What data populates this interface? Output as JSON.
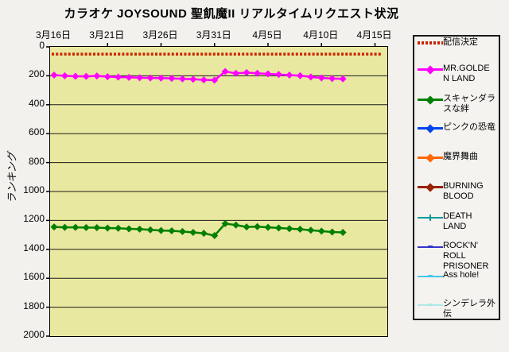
{
  "chart_data": {
    "type": "line",
    "title": "カラオケ JOYSOUND 聖飢魔II リアルタイムリクエスト状況",
    "ylabel": "ランキング",
    "y_axis": {
      "min": 0,
      "max": 2000,
      "step": 200,
      "inverted": true
    },
    "x_tick_labels": [
      "3月16日",
      "3月21日",
      "3月26日",
      "3月31日",
      "4月5日",
      "4月10日",
      "4月15日"
    ],
    "categories": [
      "3月16日",
      "3月17日",
      "3月18日",
      "3月19日",
      "3月20日",
      "3月21日",
      "3月22日",
      "3月23日",
      "3月24日",
      "3月25日",
      "3月26日",
      "3月27日",
      "3月28日",
      "3月29日",
      "3月30日",
      "3月31日",
      "4月1日",
      "4月2日",
      "4月3日",
      "4月4日",
      "4月5日",
      "4月6日",
      "4月7日",
      "4月8日",
      "4月9日",
      "4月10日",
      "4月11日",
      "4月12日"
    ],
    "plot_bg": "#e9e8a0",
    "grid_color": "#1a1a1a",
    "legend_position": "right",
    "series": [
      {
        "name": "配信決定",
        "color": "#cc2200",
        "legend_marker": "dots",
        "thick": true,
        "constant_value": 50,
        "values": []
      },
      {
        "name": "MR.GOLDEN LAND",
        "color": "#ff00ff",
        "legend_marker": "diamond",
        "thick": true,
        "values": [
          195,
          200,
          203,
          204,
          201,
          206,
          209,
          211,
          213,
          215,
          216,
          218,
          221,
          224,
          228,
          230,
          170,
          183,
          178,
          183,
          187,
          191,
          195,
          199,
          208,
          214,
          219,
          221
        ]
      },
      {
        "name": "スキャンダラスな絆",
        "color": "#008000",
        "legend_marker": "diamond",
        "thick": true,
        "values": [
          1245,
          1248,
          1248,
          1249,
          1250,
          1253,
          1254,
          1258,
          1260,
          1265,
          1270,
          1272,
          1277,
          1283,
          1289,
          1305,
          1222,
          1232,
          1245,
          1243,
          1248,
          1252,
          1257,
          1261,
          1268,
          1274,
          1280,
          1283
        ]
      },
      {
        "name": "ピンクの恐竜",
        "color": "#0045ee",
        "legend_marker": "diamond",
        "thick": true,
        "values": []
      },
      {
        "name": "魔界舞曲",
        "color": "#ff6600",
        "legend_marker": "diamond",
        "thick": true,
        "values": []
      },
      {
        "name": "BURNING BLOOD",
        "color": "#992200",
        "legend_marker": "diamond",
        "thick": true,
        "values": []
      },
      {
        "name": "DEATH LAND",
        "color": "#009999",
        "legend_marker": "tick",
        "thick": false,
        "values": []
      },
      {
        "name": "ROCK'N' ROLL PRISONER",
        "color": "#3533cc",
        "legend_marker": "dash",
        "thick": false,
        "values": []
      },
      {
        "name": "Ass hole!",
        "color": "#44c8ee",
        "legend_marker": "dash",
        "thick": false,
        "values": []
      },
      {
        "name": "シンデレラ外伝",
        "color": "#aee8e8",
        "legend_marker": "dash",
        "thick": false,
        "values": []
      }
    ]
  }
}
